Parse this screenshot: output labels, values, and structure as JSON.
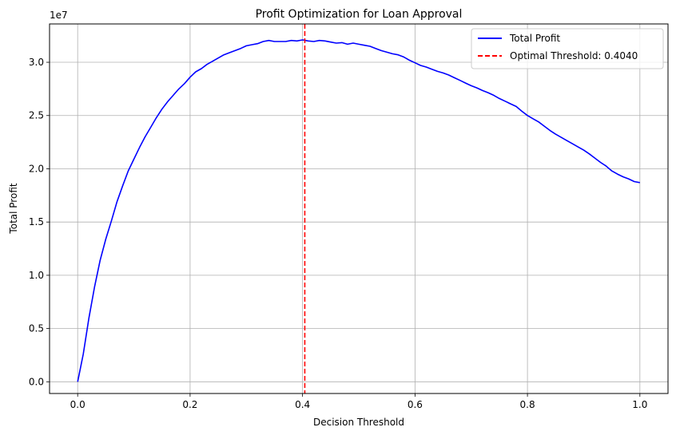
{
  "chart_data": {
    "type": "line",
    "title": "Profit Optimization for Loan Approval",
    "xlabel": "Decision Threshold",
    "ylabel": "Total Profit",
    "y_offset_label": "1e7",
    "xlim": [
      -0.05,
      1.05
    ],
    "ylim": [
      -1.1,
      33.6
    ],
    "y_unit_multiplier": 10000000,
    "grid": true,
    "legend_position": "top-right",
    "x_ticks": [
      0.0,
      0.2,
      0.4,
      0.6,
      0.8,
      1.0
    ],
    "x_tick_labels": [
      "0.0",
      "0.2",
      "0.4",
      "0.6",
      "0.8",
      "1.0"
    ],
    "y_ticks": [
      0.0,
      5.0,
      10.0,
      15.0,
      20.0,
      25.0,
      30.0
    ],
    "y_tick_labels": [
      "0.0",
      "0.5",
      "1.0",
      "1.5",
      "2.0",
      "2.5",
      "3.0"
    ],
    "series": [
      {
        "name": "Total Profit",
        "color": "#0000ff",
        "style": "solid",
        "x": [
          0.0,
          0.01,
          0.02,
          0.03,
          0.04,
          0.05,
          0.06,
          0.07,
          0.08,
          0.09,
          0.1,
          0.11,
          0.12,
          0.13,
          0.14,
          0.15,
          0.16,
          0.17,
          0.18,
          0.19,
          0.2,
          0.21,
          0.22,
          0.23,
          0.24,
          0.25,
          0.26,
          0.27,
          0.28,
          0.29,
          0.3,
          0.31,
          0.32,
          0.33,
          0.34,
          0.35,
          0.36,
          0.37,
          0.38,
          0.39,
          0.4,
          0.41,
          0.42,
          0.43,
          0.44,
          0.45,
          0.46,
          0.47,
          0.48,
          0.49,
          0.5,
          0.51,
          0.52,
          0.53,
          0.54,
          0.55,
          0.56,
          0.57,
          0.58,
          0.59,
          0.6,
          0.61,
          0.62,
          0.63,
          0.64,
          0.65,
          0.66,
          0.67,
          0.68,
          0.69,
          0.7,
          0.71,
          0.72,
          0.73,
          0.74,
          0.75,
          0.76,
          0.77,
          0.78,
          0.79,
          0.8,
          0.81,
          0.82,
          0.83,
          0.84,
          0.85,
          0.86,
          0.87,
          0.88,
          0.89,
          0.9,
          0.91,
          0.92,
          0.93,
          0.94,
          0.95,
          0.96,
          0.97,
          0.98,
          0.99,
          1.0
        ],
        "y": [
          0.0,
          2.6,
          6.0,
          8.9,
          11.4,
          13.4,
          15.1,
          16.9,
          18.4,
          19.8,
          20.9,
          22.0,
          23.0,
          23.9,
          24.8,
          25.6,
          26.3,
          26.9,
          27.5,
          28.0,
          28.6,
          29.1,
          29.4,
          29.8,
          30.1,
          30.4,
          30.7,
          30.9,
          31.1,
          31.3,
          31.55,
          31.65,
          31.75,
          31.95,
          32.05,
          31.95,
          31.95,
          31.95,
          32.05,
          32.0,
          32.1,
          32.0,
          31.95,
          32.05,
          32.0,
          31.9,
          31.8,
          31.85,
          31.7,
          31.8,
          31.7,
          31.6,
          31.5,
          31.3,
          31.1,
          30.95,
          30.8,
          30.7,
          30.5,
          30.2,
          29.95,
          29.7,
          29.55,
          29.35,
          29.15,
          29.0,
          28.8,
          28.55,
          28.3,
          28.05,
          27.8,
          27.6,
          27.35,
          27.15,
          26.9,
          26.6,
          26.35,
          26.1,
          25.85,
          25.4,
          25.0,
          24.7,
          24.4,
          24.0,
          23.6,
          23.25,
          22.95,
          22.65,
          22.35,
          22.05,
          21.75,
          21.4,
          21.0,
          20.6,
          20.25,
          19.8,
          19.5,
          19.25,
          19.05,
          18.8,
          18.7
        ]
      }
    ],
    "threshold_line": {
      "name": "Optimal Threshold: 0.4040",
      "x": 0.404,
      "color": "#ff0000",
      "style": "dashed"
    }
  }
}
